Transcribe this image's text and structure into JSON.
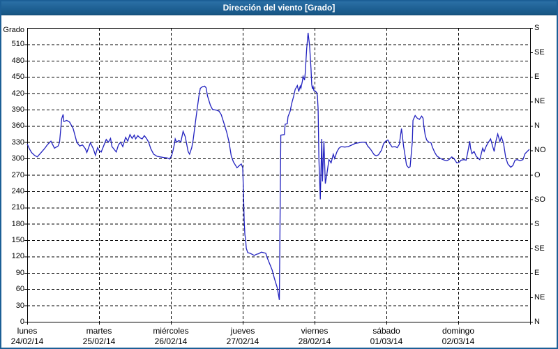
{
  "window": {
    "title": "Dirección del viento [Grado]"
  },
  "colors": {
    "titlebar_blue": "#1e6093",
    "window_border": "#1c5f96",
    "line_blue": "#2121bf",
    "grid_black": "#000000",
    "background": "#ffffff"
  },
  "chart_data": {
    "type": "line",
    "title": "Dirección del viento [Grado]",
    "ylabel_left": "Grado",
    "ylim": [
      0,
      540
    ],
    "grid": {
      "horizontal_step": 30,
      "vertical": "one line per day boundary",
      "style": "dashed"
    },
    "legend": "none",
    "y_left_ticks": [
      0,
      30,
      60,
      90,
      120,
      150,
      180,
      210,
      240,
      270,
      300,
      330,
      360,
      390,
      420,
      450,
      480,
      510
    ],
    "y_right_ticks": [
      {
        "value": 540,
        "label": "S"
      },
      {
        "value": 495,
        "label": "SE"
      },
      {
        "value": 450,
        "label": "E"
      },
      {
        "value": 405,
        "label": "NE"
      },
      {
        "value": 360,
        "label": "N"
      },
      {
        "value": 315,
        "label": "NO"
      },
      {
        "value": 270,
        "label": "O"
      },
      {
        "value": 225,
        "label": "SO"
      },
      {
        "value": 180,
        "label": "S"
      },
      {
        "value": 135,
        "label": "SE"
      },
      {
        "value": 90,
        "label": "E"
      },
      {
        "value": 45,
        "label": "NE"
      },
      {
        "value": 0,
        "label": "N"
      }
    ],
    "x_days": [
      {
        "name": "lunes",
        "date": "24/02/14"
      },
      {
        "name": "martes",
        "date": "25/02/14"
      },
      {
        "name": "miércoles",
        "date": "26/02/14"
      },
      {
        "name": "jueves",
        "date": "27/02/14"
      },
      {
        "name": "viernes",
        "date": "28/02/14"
      },
      {
        "name": "sábado",
        "date": "01/03/14"
      },
      {
        "name": "domingo",
        "date": "02/03/14"
      }
    ],
    "x_span_days": 7,
    "series": [
      {
        "name": "Dirección del viento",
        "color": "#2121bf",
        "units": "grados",
        "points": [
          [
            0.0,
            327
          ],
          [
            0.03,
            318
          ],
          [
            0.06,
            311
          ],
          [
            0.1,
            306
          ],
          [
            0.14,
            303
          ],
          [
            0.2,
            312
          ],
          [
            0.24,
            318
          ],
          [
            0.28,
            325
          ],
          [
            0.33,
            332
          ],
          [
            0.38,
            319
          ],
          [
            0.43,
            323
          ],
          [
            0.45,
            330
          ],
          [
            0.48,
            373
          ],
          [
            0.5,
            381
          ],
          [
            0.51,
            368
          ],
          [
            0.55,
            370
          ],
          [
            0.59,
            367
          ],
          [
            0.64,
            355
          ],
          [
            0.69,
            330
          ],
          [
            0.73,
            323
          ],
          [
            0.77,
            325
          ],
          [
            0.81,
            318
          ],
          [
            0.83,
            311
          ],
          [
            0.88,
            329
          ],
          [
            0.92,
            318
          ],
          [
            0.95,
            306
          ],
          [
            0.98,
            320
          ],
          [
            1.0,
            315
          ],
          [
            1.03,
            312
          ],
          [
            1.06,
            322
          ],
          [
            1.1,
            335
          ],
          [
            1.13,
            330
          ],
          [
            1.16,
            337
          ],
          [
            1.18,
            322
          ],
          [
            1.21,
            317
          ],
          [
            1.24,
            312
          ],
          [
            1.27,
            325
          ],
          [
            1.3,
            330
          ],
          [
            1.33,
            322
          ],
          [
            1.37,
            339
          ],
          [
            1.4,
            332
          ],
          [
            1.43,
            344
          ],
          [
            1.46,
            337
          ],
          [
            1.49,
            343
          ],
          [
            1.51,
            336
          ],
          [
            1.54,
            342
          ],
          [
            1.57,
            338
          ],
          [
            1.6,
            336
          ],
          [
            1.63,
            342
          ],
          [
            1.66,
            337
          ],
          [
            1.69,
            330
          ],
          [
            1.72,
            318
          ],
          [
            1.76,
            308
          ],
          [
            1.81,
            304
          ],
          [
            1.85,
            303
          ],
          [
            1.9,
            302
          ],
          [
            1.95,
            301
          ],
          [
            1.98,
            299
          ],
          [
            2.01,
            305
          ],
          [
            2.03,
            315
          ],
          [
            2.05,
            327
          ],
          [
            2.06,
            336
          ],
          [
            2.08,
            330
          ],
          [
            2.11,
            333
          ],
          [
            2.14,
            331
          ],
          [
            2.17,
            350
          ],
          [
            2.2,
            340
          ],
          [
            2.24,
            313
          ],
          [
            2.26,
            308
          ],
          [
            2.29,
            320
          ],
          [
            2.31,
            334
          ],
          [
            2.35,
            376
          ],
          [
            2.39,
            415
          ],
          [
            2.41,
            429
          ],
          [
            2.44,
            432
          ],
          [
            2.47,
            433
          ],
          [
            2.49,
            430
          ],
          [
            2.51,
            415
          ],
          [
            2.55,
            398
          ],
          [
            2.58,
            390
          ],
          [
            2.63,
            389
          ],
          [
            2.67,
            387
          ],
          [
            2.7,
            381
          ],
          [
            2.75,
            360
          ],
          [
            2.78,
            347
          ],
          [
            2.81,
            330
          ],
          [
            2.84,
            305
          ],
          [
            2.87,
            294
          ],
          [
            2.92,
            283
          ],
          [
            2.96,
            288
          ],
          [
            2.98,
            290
          ],
          [
            3.0,
            283
          ],
          [
            3.01,
            240
          ],
          [
            3.02,
            185
          ],
          [
            3.03,
            160
          ],
          [
            3.04,
            152
          ],
          [
            3.05,
            135
          ],
          [
            3.07,
            127
          ],
          [
            3.1,
            126
          ],
          [
            3.13,
            124
          ],
          [
            3.16,
            122
          ],
          [
            3.19,
            124
          ],
          [
            3.22,
            125
          ],
          [
            3.26,
            128
          ],
          [
            3.29,
            127
          ],
          [
            3.32,
            126
          ],
          [
            3.34,
            118
          ],
          [
            3.38,
            105
          ],
          [
            3.41,
            95
          ],
          [
            3.44,
            80
          ],
          [
            3.48,
            63
          ],
          [
            3.5,
            48
          ],
          [
            3.51,
            40
          ],
          [
            3.53,
            343
          ],
          [
            3.58,
            344
          ],
          [
            3.59,
            363
          ],
          [
            3.62,
            364
          ],
          [
            3.63,
            377
          ],
          [
            3.66,
            387
          ],
          [
            3.68,
            400
          ],
          [
            3.71,
            415
          ],
          [
            3.73,
            427
          ],
          [
            3.76,
            434
          ],
          [
            3.78,
            423
          ],
          [
            3.8,
            433
          ],
          [
            3.81,
            429
          ],
          [
            3.83,
            442
          ],
          [
            3.84,
            451
          ],
          [
            3.86,
            444
          ],
          [
            3.87,
            457
          ],
          [
            3.89,
            502
          ],
          [
            3.91,
            531
          ],
          [
            3.93,
            508
          ],
          [
            3.95,
            465
          ],
          [
            3.96,
            436
          ],
          [
            3.97,
            428
          ],
          [
            3.98,
            432
          ],
          [
            3.99,
            425
          ],
          [
            4.01,
            424
          ],
          [
            4.03,
            421
          ],
          [
            4.04,
            415
          ],
          [
            4.05,
            390
          ],
          [
            4.06,
            300
          ],
          [
            4.08,
            225
          ],
          [
            4.1,
            336
          ],
          [
            4.11,
            258
          ],
          [
            4.13,
            332
          ],
          [
            4.15,
            254
          ],
          [
            4.17,
            270
          ],
          [
            4.2,
            298
          ],
          [
            4.23,
            292
          ],
          [
            4.26,
            308
          ],
          [
            4.28,
            300
          ],
          [
            4.31,
            312
          ],
          [
            4.34,
            319
          ],
          [
            4.37,
            322
          ],
          [
            4.42,
            321
          ],
          [
            4.47,
            322
          ],
          [
            4.52,
            325
          ],
          [
            4.57,
            328
          ],
          [
            4.62,
            329
          ],
          [
            4.66,
            330
          ],
          [
            4.71,
            330
          ],
          [
            4.74,
            323
          ],
          [
            4.78,
            317
          ],
          [
            4.83,
            307
          ],
          [
            4.86,
            305
          ],
          [
            4.89,
            307
          ],
          [
            4.93,
            315
          ],
          [
            4.96,
            327
          ],
          [
            4.99,
            332
          ],
          [
            5.02,
            334
          ],
          [
            5.05,
            327
          ],
          [
            5.08,
            321
          ],
          [
            5.12,
            322
          ],
          [
            5.15,
            320
          ],
          [
            5.18,
            326
          ],
          [
            5.21,
            355
          ],
          [
            5.24,
            322
          ],
          [
            5.26,
            305
          ],
          [
            5.28,
            288
          ],
          [
            5.31,
            283
          ],
          [
            5.33,
            285
          ],
          [
            5.36,
            330
          ],
          [
            5.37,
            370
          ],
          [
            5.4,
            379
          ],
          [
            5.43,
            374
          ],
          [
            5.46,
            372
          ],
          [
            5.49,
            378
          ],
          [
            5.51,
            374
          ],
          [
            5.52,
            360
          ],
          [
            5.54,
            343
          ],
          [
            5.56,
            334
          ],
          [
            5.59,
            330
          ],
          [
            5.62,
            329
          ],
          [
            5.64,
            321
          ],
          [
            5.67,
            312
          ],
          [
            5.7,
            305
          ],
          [
            5.74,
            301
          ],
          [
            5.77,
            299
          ],
          [
            5.81,
            297
          ],
          [
            5.84,
            296
          ],
          [
            5.87,
            298
          ],
          [
            5.91,
            303
          ],
          [
            5.94,
            300
          ],
          [
            5.98,
            292
          ],
          [
            6.01,
            293
          ],
          [
            6.04,
            297
          ],
          [
            6.08,
            298
          ],
          [
            6.11,
            297
          ],
          [
            6.13,
            310
          ],
          [
            6.16,
            332
          ],
          [
            6.17,
            320
          ],
          [
            6.19,
            309
          ],
          [
            6.22,
            313
          ],
          [
            6.25,
            304
          ],
          [
            6.28,
            300
          ],
          [
            6.3,
            298
          ],
          [
            6.34,
            319
          ],
          [
            6.36,
            313
          ],
          [
            6.39,
            323
          ],
          [
            6.42,
            330
          ],
          [
            6.45,
            336
          ],
          [
            6.48,
            322
          ],
          [
            6.5,
            313
          ],
          [
            6.52,
            330
          ],
          [
            6.55,
            345
          ],
          [
            6.58,
            331
          ],
          [
            6.6,
            340
          ],
          [
            6.63,
            328
          ],
          [
            6.66,
            302
          ],
          [
            6.69,
            290
          ],
          [
            6.73,
            284
          ],
          [
            6.76,
            287
          ],
          [
            6.79,
            297
          ],
          [
            6.82,
            298
          ],
          [
            6.86,
            296
          ],
          [
            6.9,
            298
          ],
          [
            6.93,
            309
          ],
          [
            6.96,
            313
          ],
          [
            6.99,
            317
          ]
        ]
      }
    ]
  }
}
